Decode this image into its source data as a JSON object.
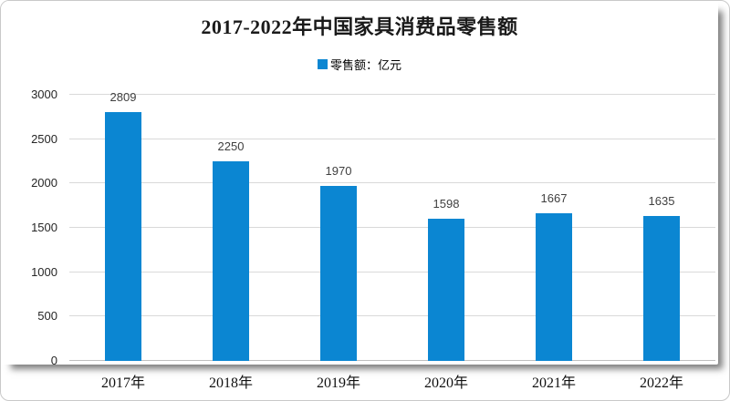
{
  "chart_data": {
    "type": "bar",
    "title": "2017-2022年中国家具消费品零售额",
    "legend": {
      "label": "零售额：亿元",
      "position": "top-center",
      "marker_color": "#0b86d2"
    },
    "categories": [
      "2017年",
      "2018年",
      "2019年",
      "2020年",
      "2021年",
      "2022年"
    ],
    "series": [
      {
        "name": "零售额：亿元",
        "values": [
          2809,
          2250,
          1970,
          1598,
          1667,
          1635
        ]
      }
    ],
    "bar_color": "#0b86d2",
    "value_label_color": "#3f3f3f",
    "xlabel": "",
    "ylabel": "",
    "ylim": [
      0,
      3000
    ],
    "yticks": [
      0,
      500,
      1000,
      1500,
      2000,
      2500,
      3000
    ],
    "grid": true,
    "gridline_color": "#d9d9d9"
  }
}
